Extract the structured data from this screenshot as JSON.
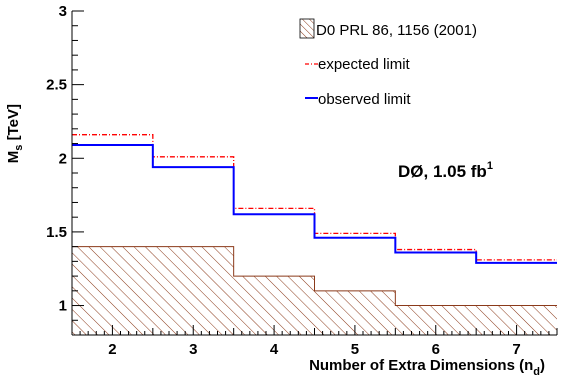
{
  "chart_data": {
    "type": "step",
    "xlabel_main": "Number of Extra Dimensions (n",
    "xlabel_sub": "d",
    "xlabel_close": ")",
    "ylabel_main": "M",
    "ylabel_sub": "s",
    "ylabel_unit": " [TeV]",
    "xlim": [
      1.5,
      7.5
    ],
    "ylim": [
      0.8,
      3.0
    ],
    "x_ticks": [
      2,
      3,
      4,
      5,
      6,
      7
    ],
    "y_ticks": [
      {
        "value": 1,
        "label": "1"
      },
      {
        "value": 1.5,
        "label": "1.5"
      },
      {
        "value": 2,
        "label": "2"
      },
      {
        "value": 2.5,
        "label": "2.5"
      },
      {
        "value": 3,
        "label": "3"
      }
    ],
    "grid": false,
    "legend_position": "top-right",
    "bin_edges": [
      1.5,
      2.5,
      3.5,
      4.5,
      5.5,
      6.5,
      7.5
    ],
    "series": [
      {
        "name": "D0 PRL 86, 1156 (2001)",
        "style": "hatched",
        "color": "#8b3a1a",
        "values": [
          1.4,
          1.4,
          1.2,
          1.1,
          1.0,
          1.0
        ]
      },
      {
        "name": "expected limit",
        "style": "dash-dot",
        "color": "#ff0000",
        "values": [
          2.16,
          2.01,
          1.66,
          1.49,
          1.38,
          1.31
        ]
      },
      {
        "name": "observed limit",
        "style": "solid",
        "color": "#0000ff",
        "values": [
          2.09,
          1.94,
          1.62,
          1.46,
          1.36,
          1.29
        ]
      }
    ],
    "annotation": {
      "main": "DØ, 1.05 fb",
      "sup": "1"
    }
  },
  "colors": {
    "observed": "#0000ff",
    "expected": "#ff0000",
    "hatch": "#8b3a1a",
    "axis": "#000000"
  }
}
